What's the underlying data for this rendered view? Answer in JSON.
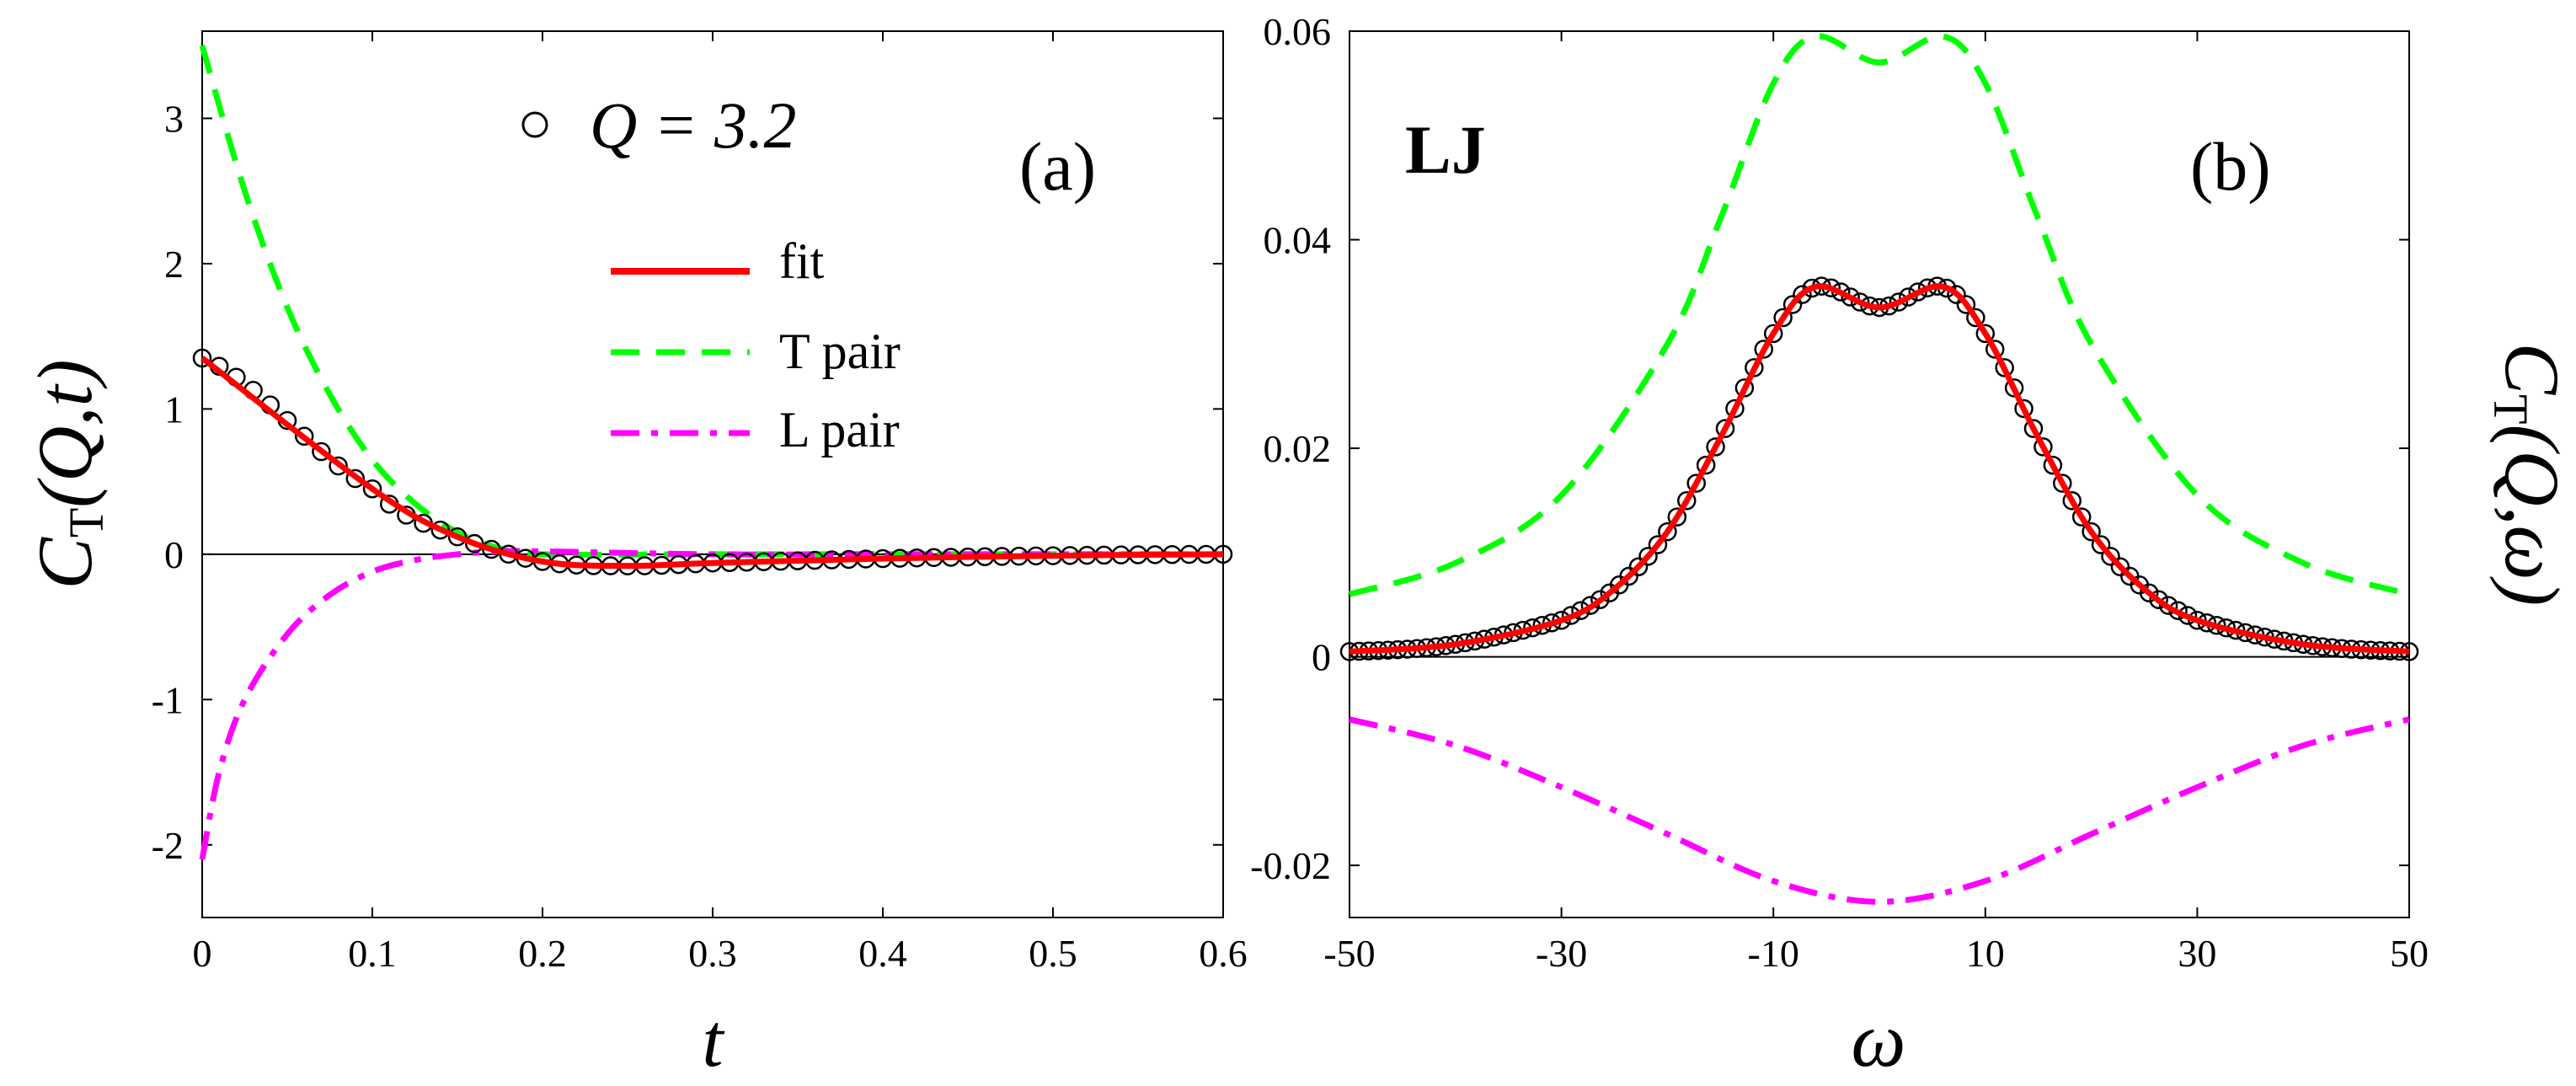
{
  "chart_data": [
    {
      "type": "line",
      "panel_label": "(a)",
      "xlabel": "t",
      "ylabel_main": "C",
      "ylabel_sub": "T",
      "ylabel_args": "(Q,t)",
      "xlim": [
        0,
        0.6
      ],
      "ylim": [
        -2.5,
        3.6
      ],
      "xticks": [
        0,
        0.1,
        0.2,
        0.3,
        0.4,
        0.5,
        0.6
      ],
      "xtick_labels": [
        "0",
        "0.1",
        "0.2",
        "0.3",
        "0.4",
        "0.5",
        "0.6"
      ],
      "yticks": [
        -2,
        -1,
        0,
        1,
        2,
        3
      ],
      "ytick_labels": [
        "-2",
        "-1",
        "0",
        "1",
        "2",
        "3"
      ],
      "legend_marker_text": "Q = 3.2",
      "legend": [
        {
          "name": "fit",
          "color": "#ff0000",
          "style": "solid"
        },
        {
          "name": "T pair",
          "color": "#00ff00",
          "style": "dashed"
        },
        {
          "name": "L pair",
          "color": "#ff00ff",
          "style": "dashdot"
        }
      ],
      "series": [
        {
          "name": "data Q = 3.2",
          "kind": "markers",
          "x": [
            0,
            0.1,
            0.15,
            0.2,
            0.25,
            0.3,
            0.4,
            0.5,
            0.6
          ],
          "y": [
            1.35,
            0.45,
            0.12,
            -0.05,
            -0.08,
            -0.06,
            -0.03,
            -0.01,
            0
          ]
        },
        {
          "name": "fit",
          "kind": "line",
          "x": [
            0,
            0.1,
            0.15,
            0.2,
            0.25,
            0.3,
            0.4,
            0.5,
            0.6
          ],
          "y": [
            1.35,
            0.45,
            0.12,
            -0.05,
            -0.08,
            -0.06,
            -0.03,
            -0.01,
            0
          ]
        },
        {
          "name": "T pair",
          "kind": "line",
          "x": [
            0,
            0.025,
            0.05,
            0.075,
            0.1,
            0.125,
            0.15,
            0.175,
            0.2,
            0.3,
            0.4,
            0.5,
            0.6
          ],
          "y": [
            3.5,
            2.5,
            1.7,
            1.1,
            0.65,
            0.35,
            0.15,
            0.04,
            0.0,
            0.0,
            0.0,
            0.0,
            0.0
          ]
        },
        {
          "name": "L pair",
          "kind": "line",
          "x": [
            0,
            0.01,
            0.025,
            0.05,
            0.075,
            0.1,
            0.125,
            0.15,
            0.175,
            0.2,
            0.3,
            0.4,
            0.5,
            0.6
          ],
          "y": [
            -2.1,
            -1.5,
            -1.0,
            -0.55,
            -0.28,
            -0.12,
            -0.04,
            0.0,
            0.02,
            0.02,
            0.0,
            0.0,
            0.0,
            0.0
          ]
        }
      ]
    },
    {
      "type": "line",
      "panel_label": "(b)",
      "annotation": "LJ",
      "annotation_color": "#cc9900",
      "xlabel": "ω",
      "ylabel_main": "C",
      "ylabel_sub": "T",
      "ylabel_args": "(Q,ω)",
      "xlim": [
        -50,
        50
      ],
      "ylim": [
        -0.025,
        0.06
      ],
      "xticks": [
        -50,
        -30,
        -10,
        10,
        30,
        50
      ],
      "xtick_labels": [
        "-50",
        "-30",
        "-10",
        "10",
        "30",
        "50"
      ],
      "yticks": [
        -0.02,
        0,
        0.02,
        0.04,
        0.06
      ],
      "ytick_labels": [
        "-0.02",
        "0",
        "0.02",
        "0.04",
        "0.06"
      ],
      "series": [
        {
          "name": "data",
          "kind": "markers",
          "x": [
            -50,
            -40,
            -30,
            -25,
            -20,
            -15,
            -10,
            -6,
            0,
            6,
            10,
            15,
            20,
            25,
            30,
            40,
            50
          ],
          "y": [
            0.0005,
            0.0012,
            0.0035,
            0.0065,
            0.012,
            0.021,
            0.031,
            0.0355,
            0.0335,
            0.0355,
            0.031,
            0.021,
            0.012,
            0.0065,
            0.0035,
            0.0012,
            0.0005
          ]
        },
        {
          "name": "fit",
          "kind": "line",
          "x": [
            -50,
            -40,
            -30,
            -25,
            -20,
            -15,
            -10,
            -6,
            0,
            6,
            10,
            15,
            20,
            25,
            30,
            40,
            50
          ],
          "y": [
            0.0005,
            0.0012,
            0.0035,
            0.0065,
            0.012,
            0.021,
            0.031,
            0.0355,
            0.0335,
            0.0355,
            0.031,
            0.021,
            0.012,
            0.0065,
            0.0035,
            0.0012,
            0.0005
          ]
        },
        {
          "name": "T pair",
          "kind": "line",
          "x": [
            -50,
            -40,
            -30,
            -20,
            -15,
            -10,
            -6,
            0,
            6,
            10,
            15,
            20,
            30,
            40,
            50
          ],
          "y": [
            0.006,
            0.009,
            0.0155,
            0.03,
            0.042,
            0.055,
            0.0595,
            0.057,
            0.0595,
            0.055,
            0.042,
            0.03,
            0.0155,
            0.009,
            0.006
          ]
        },
        {
          "name": "L pair",
          "kind": "line",
          "x": [
            -50,
            -40,
            -30,
            -20,
            -10,
            0,
            10,
            20,
            30,
            40,
            50
          ],
          "y": [
            -0.006,
            -0.0085,
            -0.0125,
            -0.017,
            -0.0215,
            -0.0235,
            -0.0215,
            -0.017,
            -0.0125,
            -0.0085,
            -0.006
          ]
        }
      ]
    }
  ]
}
